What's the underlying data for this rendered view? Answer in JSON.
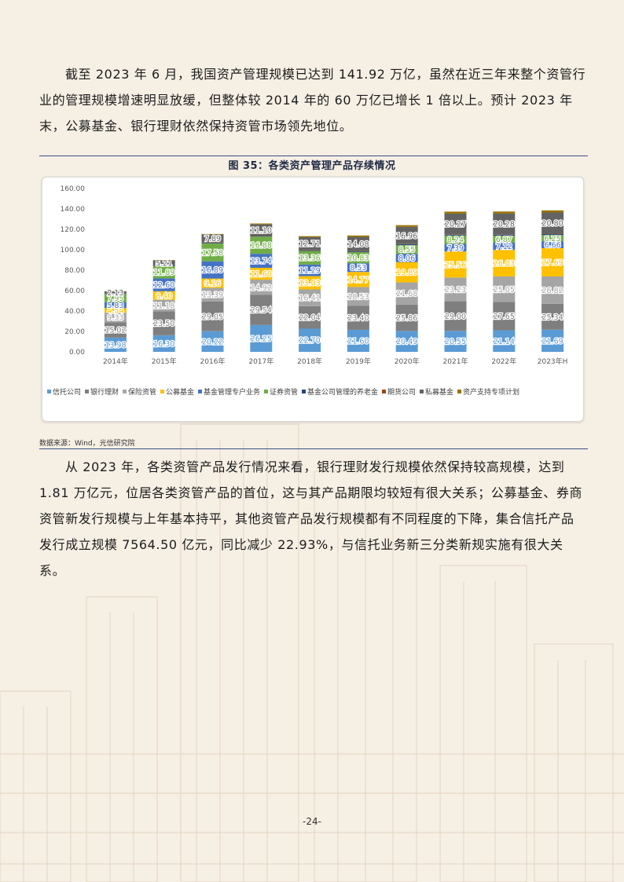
{
  "paragraphs": {
    "p1": "截至 2023 年 6 月，我国资产管理规模已达到 141.92 万亿，虽然在近三年来整个资管行业的管理规模增速明显放缓，但整体较 2014 年的 60 万亿已增长 1 倍以上。预计 2023 年末，公募基金、银行理财依然保持资管市场领先地位。",
    "p2": "从 2023 年，各类资管产品发行情况来看，银行理财发行规模依然保持较高规模，达到 1.81 万亿元，位居各类资管产品的首位，这与其产品期限均较短有很大关系；公募基金、券商资管新发行规模与上年基本持平，其他资管产品发行规模都有不同程度的下降，集合信托产品发行成立规模 7564.50 亿元，同比减少 22.93%，与信托业务新三分类新规实施有很大关系。"
  },
  "figure": {
    "title": "图 35：各类资产管理产品存续情况",
    "source": "数据来源：Wind，光信研究院"
  },
  "page_number": "-24-",
  "chart_data": {
    "type": "bar",
    "stacked": true,
    "categories": [
      "2014年",
      "2015年",
      "2016年",
      "2017年",
      "2018年",
      "2019年",
      "2020年",
      "2021年",
      "2022年",
      "2023年H"
    ],
    "ylim": [
      0,
      160
    ],
    "yticks": [
      "0.00",
      "20.00",
      "40.00",
      "60.00",
      "80.00",
      "100.00",
      "120.00",
      "140.00",
      "160.00"
    ],
    "legend_position": "bottom",
    "grid": false,
    "series": [
      {
        "name": "信托公司",
        "color": "#5b9bd5",
        "values": [
          13.98,
          16.3,
          20.22,
          26.25,
          22.7,
          21.6,
          20.49,
          20.55,
          21.14,
          21.69
        ],
        "labels": [
          "13.98",
          "16.30",
          "20.22",
          "26.25",
          "22.70",
          "21.60",
          "20.49",
          "20.55",
          "21.14",
          "21.69"
        ]
      },
      {
        "name": "银行理财",
        "color": "#7f7f7f",
        "values": [
          15.02,
          23.5,
          29.05,
          29.54,
          22.04,
          23.4,
          25.86,
          29.0,
          27.65,
          25.34
        ],
        "labels": [
          "15.02",
          "23.50",
          "29.05",
          "29.54",
          "22.04",
          "23.40",
          "25.86",
          "29.00",
          "27.65",
          "25.34"
        ]
      },
      {
        "name": "保险资管",
        "color": "#a5a5a5",
        "values": [
          9.33,
          11.18,
          13.39,
          14.92,
          16.41,
          18.53,
          21.68,
          23.23,
          25.05,
          26.82
        ],
        "labels": [
          "9.33",
          "11.18",
          "13.39",
          "14.92",
          "16.41",
          "18.53",
          "21.68",
          "23.23",
          "25.05",
          "26.82"
        ]
      },
      {
        "name": "公募基金",
        "color": "#ffc000",
        "values": [
          4.54,
          8.4,
          9.16,
          11.6,
          13.03,
          14.77,
          19.89,
          25.56,
          26.03,
          27.69
        ],
        "labels": [
          "4.54",
          "8.40",
          "9.16",
          "11.60",
          "13.03",
          "14.77",
          "19.89",
          "25.56",
          "26.03",
          "27.69"
        ]
      },
      {
        "name": "基金管理专户业务",
        "color": "#4472c4",
        "values": [
          5.83,
          12.6,
          16.89,
          13.74,
          11.29,
          8.53,
          8.06,
          7.39,
          7.12,
          6.66
        ],
        "labels": [
          "5.83",
          "12.60",
          "16.89",
          "13.74",
          "11.29",
          "8.53",
          "8.06",
          "7.39",
          "7.12",
          "6.66"
        ]
      },
      {
        "name": "证券资管",
        "color": "#70ad47",
        "values": [
          7.95,
          11.89,
          17.58,
          16.88,
          13.36,
          10.83,
          8.55,
          8.24,
          6.87,
          6.25
        ],
        "labels": [
          "7.95",
          "11.89",
          "17.58",
          "16.88",
          "13.36",
          "10.83",
          "8.55",
          "8.24",
          "6.87",
          "6.25"
        ]
      },
      {
        "name": "基金公司管理的养老金",
        "color": "#264478",
        "values": [
          0.4,
          0.5,
          0.6,
          0.6,
          0.6,
          0.7,
          0.8,
          0.9,
          1.0,
          1.0
        ],
        "labels": [
          "",
          "",
          "",
          "",
          "",
          "",
          "",
          "",
          "",
          ""
        ]
      },
      {
        "name": "期货公司",
        "color": "#9e480e",
        "values": [
          0.1,
          0.1,
          0.3,
          0.3,
          0.2,
          0.2,
          0.2,
          0.3,
          0.3,
          0.3
        ],
        "labels": [
          "",
          "",
          "",
          "",
          "",
          "",
          "",
          "",
          "",
          ""
        ]
      },
      {
        "name": "私募基金",
        "color": "#636363",
        "values": [
          2.13,
          5.21,
          7.89,
          11.1,
          12.71,
          14.08,
          16.96,
          20.27,
          20.28,
          20.8
        ],
        "labels": [
          "2.13",
          "5.21",
          "7.89",
          "11.10",
          "12.71",
          "14.08",
          "16.96",
          "20.27",
          "20.28",
          "20.80"
        ]
      },
      {
        "name": "资产支持专项计划",
        "color": "#997300",
        "values": [
          0.1,
          0.2,
          0.4,
          0.8,
          1.0,
          1.3,
          1.6,
          1.9,
          2.0,
          2.0
        ],
        "labels": [
          "",
          "",
          "",
          "",
          "",
          "",
          "",
          "",
          "",
          ""
        ]
      }
    ]
  }
}
